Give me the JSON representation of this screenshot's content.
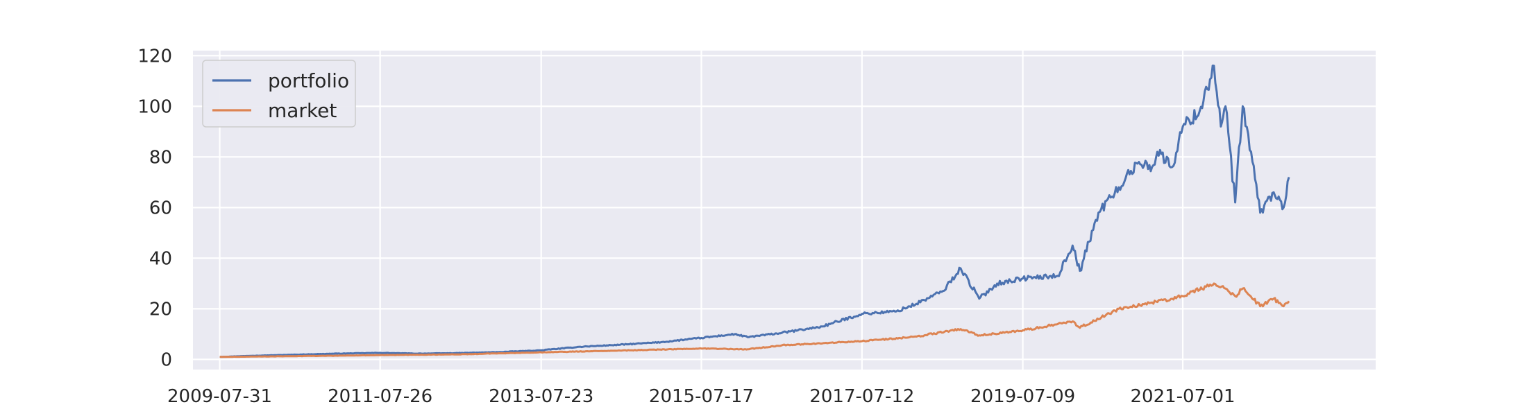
{
  "chart_data": {
    "type": "line",
    "title": "",
    "xlabel": "",
    "ylabel": "",
    "grid": true,
    "legend_position": "top-left",
    "xlim": [
      "2009-04-01",
      "2023-11-20"
    ],
    "ylim": [
      -4,
      122
    ],
    "x_ticks": [
      "2009-07-31",
      "2011-07-26",
      "2013-07-23",
      "2015-07-17",
      "2017-07-12",
      "2019-07-09",
      "2021-07-01"
    ],
    "y_ticks": [
      0,
      20,
      40,
      60,
      80,
      100,
      120
    ],
    "colors": {
      "background": "#eaeaf2",
      "grid": "#ffffff",
      "portfolio": "#4c72b0",
      "market": "#dd8452"
    },
    "series": [
      {
        "name": "portfolio",
        "x": [
          "2009-07-31",
          "2010-01-15",
          "2010-07-15",
          "2011-01-14",
          "2011-07-26",
          "2012-01-13",
          "2012-07-13",
          "2013-01-15",
          "2013-07-23",
          "2014-01-15",
          "2014-07-15",
          "2015-01-15",
          "2015-07-17",
          "2015-12-15",
          "2016-02-11",
          "2016-07-15",
          "2017-01-13",
          "2017-07-12",
          "2017-12-15",
          "2018-03-15",
          "2018-07-13",
          "2018-10-01",
          "2018-12-24",
          "2019-03-15",
          "2019-07-09",
          "2019-12-13",
          "2020-02-19",
          "2020-03-23",
          "2020-06-15",
          "2020-09-15",
          "2020-12-15",
          "2021-02-12",
          "2021-03-08",
          "2021-05-14",
          "2021-07-01",
          "2021-09-15",
          "2021-11-19",
          "2021-12-20",
          "2022-01-10",
          "2022-02-23",
          "2022-03-29",
          "2022-05-12",
          "2022-06-16",
          "2022-08-16",
          "2022-09-30",
          "2022-10-24"
        ],
        "values": [
          1,
          1.5,
          1.9,
          2.3,
          2.6,
          2.3,
          2.5,
          2.9,
          3.6,
          5,
          5.8,
          6.8,
          8.5,
          10,
          8.8,
          10.5,
          13,
          18,
          19,
          22,
          27,
          36,
          24,
          30,
          32,
          33,
          45,
          35,
          58,
          68,
          78,
          76,
          82,
          76,
          92,
          98,
          116,
          92,
          100,
          62,
          100,
          78,
          58,
          66,
          60,
          72
        ]
      },
      {
        "name": "market",
        "x": [
          "2009-07-31",
          "2010-07-15",
          "2011-07-26",
          "2012-07-13",
          "2013-07-23",
          "2014-07-15",
          "2015-07-17",
          "2016-02-11",
          "2016-07-15",
          "2017-07-12",
          "2018-03-15",
          "2018-10-01",
          "2018-12-24",
          "2019-07-09",
          "2020-02-19",
          "2020-03-23",
          "2020-09-15",
          "2021-02-12",
          "2021-05-14",
          "2021-07-01",
          "2021-11-19",
          "2022-01-10",
          "2022-02-23",
          "2022-03-29",
          "2022-06-16",
          "2022-08-16",
          "2022-09-30",
          "2022-10-24"
        ],
        "values": [
          1,
          1.3,
          1.7,
          2,
          2.8,
          3.5,
          4.3,
          4,
          5.6,
          7.2,
          9,
          12,
          9.5,
          11.5,
          15,
          12.5,
          20,
          22.5,
          24,
          25,
          30,
          28,
          25,
          28,
          21,
          24,
          21,
          23
        ]
      }
    ]
  }
}
